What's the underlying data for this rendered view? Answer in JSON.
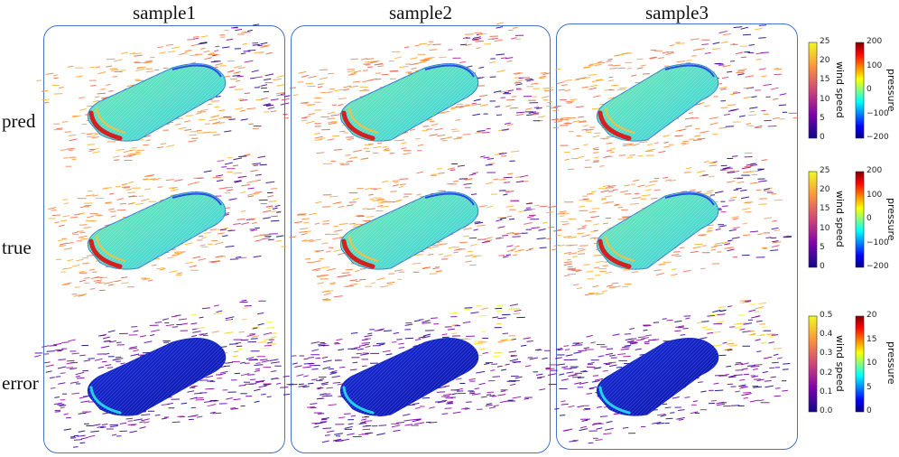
{
  "columns": [
    "sample1",
    "sample2",
    "sample3"
  ],
  "rows": [
    "pred",
    "true",
    "error"
  ],
  "colorbars": {
    "speed_label": "wind speed",
    "pressure_label": "pressure",
    "speed_ticks_main": [
      "25",
      "20",
      "15",
      "10",
      "5",
      "0"
    ],
    "pressure_ticks_main": [
      "200",
      "100",
      "0",
      "−100",
      "−200"
    ],
    "speed_ticks_error": [
      "0.5",
      "0.4",
      "0.3",
      "0.2",
      "0.1",
      "0.0"
    ],
    "pressure_ticks_error": [
      "20",
      "15",
      "10",
      "5",
      "0"
    ]
  },
  "colors": {
    "panel_border": "#4472c4",
    "speed_map": [
      "#0d0887",
      "#7e03a8",
      "#cc4778",
      "#f89540",
      "#f0f921"
    ],
    "pressure_map": [
      "#00007f",
      "#0000ff",
      "#00ffff",
      "#ffff00",
      "#ff0000",
      "#7f0000"
    ]
  }
}
